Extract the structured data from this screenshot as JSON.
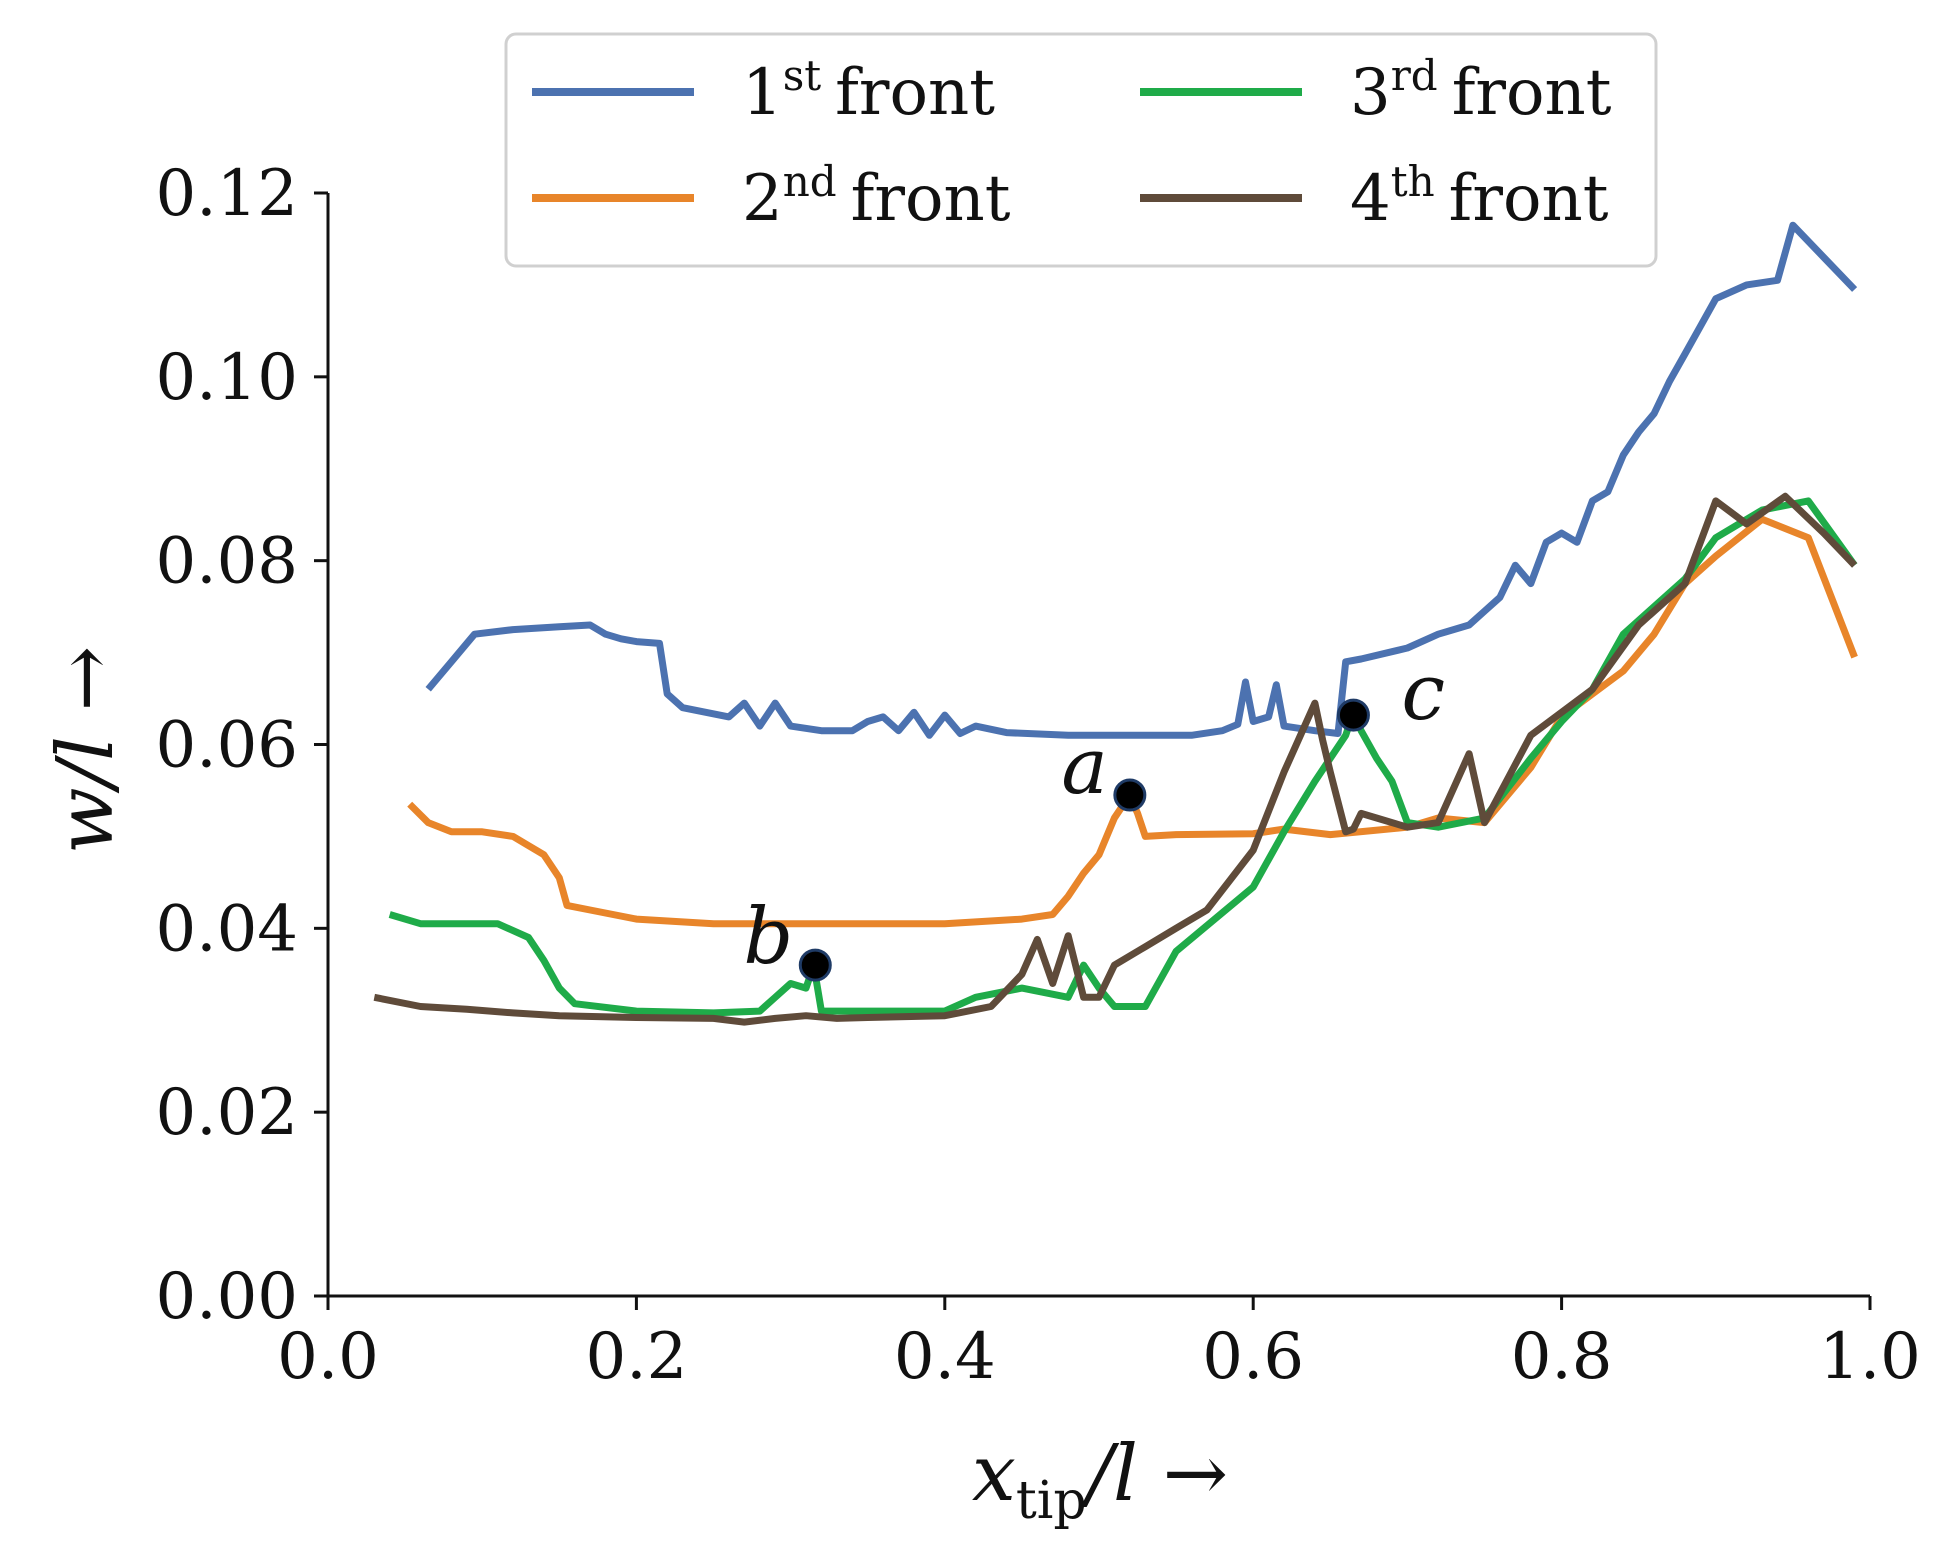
{
  "chart_data": {
    "type": "line",
    "title": "",
    "xlabel": {
      "base": "x",
      "sub": "tip",
      "rest": "/l →"
    },
    "ylabel": "w/l →",
    "xlim": [
      0,
      1
    ],
    "ylim": [
      0,
      0.12
    ],
    "xticks": [
      0.0,
      0.2,
      0.4,
      0.6,
      0.8,
      1.0
    ],
    "xtick_labels": [
      "0.0",
      "0.2",
      "0.4",
      "0.6",
      "0.8",
      "1.0"
    ],
    "yticks": [
      0.0,
      0.02,
      0.04,
      0.06,
      0.08,
      0.1,
      0.12
    ],
    "ytick_labels": [
      "0.00",
      "0.02",
      "0.04",
      "0.06",
      "0.08",
      "0.10",
      "0.12"
    ],
    "grid": false,
    "legend": {
      "placement": "top-center",
      "columns": 2,
      "entries": [
        {
          "num": "1",
          "sup": "st",
          "word": "front",
          "color": "#4c72b0"
        },
        {
          "num": "2",
          "sup": "nd",
          "word": "front",
          "color": "#e8852a"
        },
        {
          "num": "3",
          "sup": "rd",
          "word": "front",
          "color": "#1fab49"
        },
        {
          "num": "4",
          "sup": "th",
          "word": "front",
          "color": "#5f4b3a"
        }
      ]
    },
    "series": [
      {
        "name": "1st front",
        "color": "#4c72b0",
        "x": [
          0.065,
          0.08,
          0.095,
          0.12,
          0.15,
          0.17,
          0.18,
          0.19,
          0.2,
          0.215,
          0.22,
          0.23,
          0.26,
          0.27,
          0.28,
          0.29,
          0.3,
          0.32,
          0.34,
          0.35,
          0.36,
          0.37,
          0.38,
          0.39,
          0.4,
          0.41,
          0.42,
          0.44,
          0.48,
          0.52,
          0.56,
          0.58,
          0.59,
          0.595,
          0.6,
          0.61,
          0.615,
          0.62,
          0.64,
          0.655,
          0.66,
          0.67,
          0.7,
          0.72,
          0.74,
          0.75,
          0.76,
          0.77,
          0.78,
          0.79,
          0.8,
          0.81,
          0.82,
          0.83,
          0.84,
          0.85,
          0.86,
          0.87,
          0.88,
          0.89,
          0.9,
          0.92,
          0.94,
          0.95,
          0.97,
          0.99
        ],
        "values": [
          0.066,
          0.069,
          0.072,
          0.0725,
          0.0728,
          0.073,
          0.072,
          0.0715,
          0.0712,
          0.071,
          0.0655,
          0.064,
          0.063,
          0.0645,
          0.062,
          0.0645,
          0.062,
          0.0615,
          0.0615,
          0.0625,
          0.063,
          0.0615,
          0.0635,
          0.061,
          0.0632,
          0.0612,
          0.062,
          0.0613,
          0.061,
          0.061,
          0.061,
          0.0615,
          0.0622,
          0.0668,
          0.0625,
          0.063,
          0.0665,
          0.062,
          0.0615,
          0.0612,
          0.069,
          0.0693,
          0.0705,
          0.072,
          0.073,
          0.0745,
          0.076,
          0.0795,
          0.0775,
          0.082,
          0.083,
          0.082,
          0.0865,
          0.0875,
          0.0915,
          0.094,
          0.096,
          0.0995,
          0.1025,
          0.1055,
          0.1085,
          0.11,
          0.1105,
          0.1165,
          0.113,
          0.1095
        ]
      },
      {
        "name": "2nd front",
        "color": "#e8852a",
        "x": [
          0.053,
          0.065,
          0.08,
          0.1,
          0.12,
          0.13,
          0.14,
          0.15,
          0.155,
          0.17,
          0.2,
          0.25,
          0.3,
          0.35,
          0.4,
          0.45,
          0.47,
          0.48,
          0.49,
          0.5,
          0.51,
          0.52,
          0.525,
          0.53,
          0.55,
          0.6,
          0.62,
          0.65,
          0.7,
          0.72,
          0.75,
          0.78,
          0.8,
          0.82,
          0.84,
          0.86,
          0.88,
          0.9,
          0.93,
          0.96,
          0.99
        ],
        "values": [
          0.0535,
          0.0515,
          0.0505,
          0.0505,
          0.05,
          0.049,
          0.048,
          0.0455,
          0.0425,
          0.042,
          0.041,
          0.0405,
          0.0405,
          0.0405,
          0.0405,
          0.041,
          0.0415,
          0.0435,
          0.046,
          0.048,
          0.052,
          0.0545,
          0.0525,
          0.05,
          0.0502,
          0.0503,
          0.0508,
          0.0502,
          0.051,
          0.052,
          0.0515,
          0.0575,
          0.063,
          0.0655,
          0.068,
          0.072,
          0.0775,
          0.0805,
          0.0845,
          0.0825,
          0.0695
        ]
      },
      {
        "name": "3rd front",
        "color": "#1fab49",
        "x": [
          0.04,
          0.06,
          0.08,
          0.11,
          0.13,
          0.14,
          0.15,
          0.16,
          0.2,
          0.25,
          0.28,
          0.29,
          0.3,
          0.31,
          0.315,
          0.32,
          0.33,
          0.35,
          0.4,
          0.42,
          0.45,
          0.48,
          0.49,
          0.5,
          0.51,
          0.53,
          0.55,
          0.6,
          0.62,
          0.64,
          0.66,
          0.665,
          0.67,
          0.68,
          0.69,
          0.7,
          0.72,
          0.75,
          0.78,
          0.8,
          0.82,
          0.84,
          0.86,
          0.88,
          0.9,
          0.93,
          0.96,
          0.99
        ],
        "values": [
          0.0415,
          0.0405,
          0.0405,
          0.0405,
          0.039,
          0.0365,
          0.0335,
          0.0318,
          0.031,
          0.0308,
          0.031,
          0.0325,
          0.034,
          0.0335,
          0.036,
          0.031,
          0.031,
          0.031,
          0.031,
          0.0325,
          0.0335,
          0.0325,
          0.036,
          0.0335,
          0.0315,
          0.0315,
          0.0375,
          0.0445,
          0.0505,
          0.056,
          0.061,
          0.0635,
          0.0615,
          0.0585,
          0.056,
          0.0515,
          0.051,
          0.052,
          0.0585,
          0.0625,
          0.066,
          0.072,
          0.075,
          0.078,
          0.0825,
          0.0855,
          0.0865,
          0.0795
        ]
      },
      {
        "name": "4th front",
        "color": "#5f4b3a",
        "x": [
          0.03,
          0.06,
          0.09,
          0.12,
          0.15,
          0.2,
          0.25,
          0.27,
          0.29,
          0.31,
          0.33,
          0.35,
          0.4,
          0.43,
          0.45,
          0.46,
          0.47,
          0.48,
          0.49,
          0.5,
          0.51,
          0.53,
          0.55,
          0.57,
          0.6,
          0.62,
          0.64,
          0.645,
          0.65,
          0.66,
          0.665,
          0.67,
          0.68,
          0.7,
          0.72,
          0.74,
          0.75,
          0.78,
          0.8,
          0.82,
          0.85,
          0.88,
          0.9,
          0.92,
          0.945,
          0.97,
          0.99
        ],
        "values": [
          0.0325,
          0.0315,
          0.0312,
          0.0308,
          0.0305,
          0.0303,
          0.0302,
          0.0298,
          0.0302,
          0.0305,
          0.0302,
          0.0303,
          0.0305,
          0.0315,
          0.035,
          0.0388,
          0.034,
          0.0392,
          0.0325,
          0.0325,
          0.036,
          0.038,
          0.04,
          0.042,
          0.0485,
          0.057,
          0.0645,
          0.0605,
          0.057,
          0.0505,
          0.0508,
          0.0525,
          0.052,
          0.051,
          0.0515,
          0.059,
          0.0515,
          0.061,
          0.0635,
          0.066,
          0.073,
          0.0775,
          0.0865,
          0.084,
          0.087,
          0.083,
          0.0795
        ]
      }
    ],
    "annotations": [
      {
        "label": "a",
        "x": 0.52,
        "y": 0.0545,
        "text_side": "left"
      },
      {
        "label": "b",
        "x": 0.316,
        "y": 0.036,
        "text_side": "left"
      },
      {
        "label": "c",
        "x": 0.665,
        "y": 0.0632,
        "text_side": "right"
      }
    ]
  }
}
